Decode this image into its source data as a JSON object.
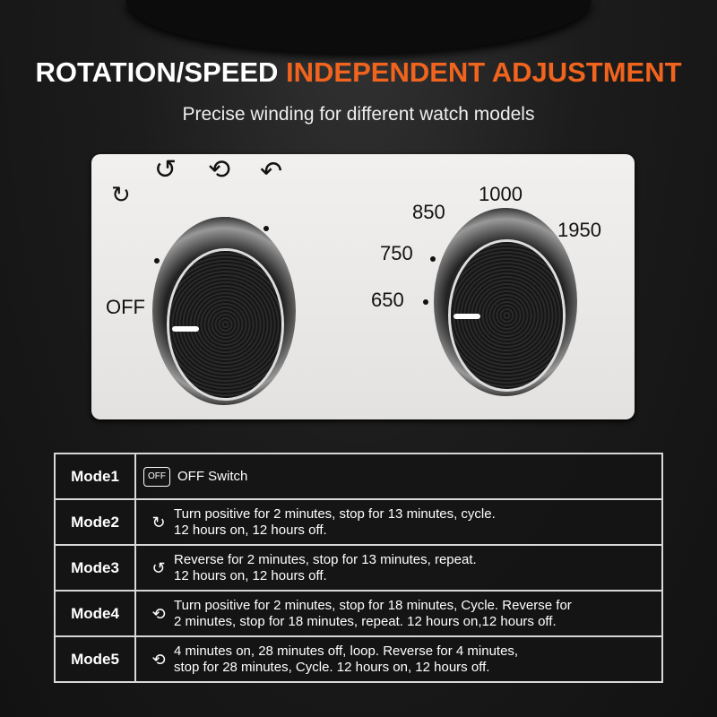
{
  "headline": {
    "white": "ROTATION/SPEED ",
    "orange": "INDEPENDENT ADJUSTMENT"
  },
  "subtitle": "Precise winding for different watch models",
  "colors": {
    "accent": "#f0641e",
    "background": "#1a1a1a",
    "panel": "#ececea"
  },
  "mode_dial": {
    "labels": [
      "OFF"
    ],
    "icons": [
      "rotate-clockwise-icon",
      "rotate-counterclockwise-icon",
      "rotate-both-icon",
      "rotate-both-alt-icon"
    ],
    "selected": "OFF"
  },
  "speed_dial": {
    "labels": [
      "650",
      "750",
      "850",
      "1000",
      "1950"
    ],
    "selected": "650"
  },
  "modes": [
    {
      "name": "Mode1",
      "icon": "off-icon",
      "icon_text": "OFF",
      "text1": "OFF Switch",
      "text2": ""
    },
    {
      "name": "Mode2",
      "icon": "rotate-clockwise-icon",
      "text1": "Turn positive for 2 minutes, stop for 13 minutes, cycle.",
      "text2": "12 hours on, 12 hours off."
    },
    {
      "name": "Mode3",
      "icon": "rotate-counterclockwise-icon",
      "text1": "Reverse for 2 minutes, stop for 13 minutes, repeat.",
      "text2": "12 hours on, 12 hours off."
    },
    {
      "name": "Mode4",
      "icon": "rotate-both-icon",
      "text1": "Turn positive for 2 minutes, stop for 18 minutes, Cycle. Reverse for",
      "text2": "2 minutes, stop for 18 minutes, repeat. 12 hours on,12 hours off."
    },
    {
      "name": "Mode5",
      "icon": "rotate-both-icon",
      "text1": "4 minutes on, 28 minutes off, loop. Reverse for 4 minutes,",
      "text2": "stop for 28 minutes, Cycle. 12 hours on, 12 hours off."
    }
  ]
}
